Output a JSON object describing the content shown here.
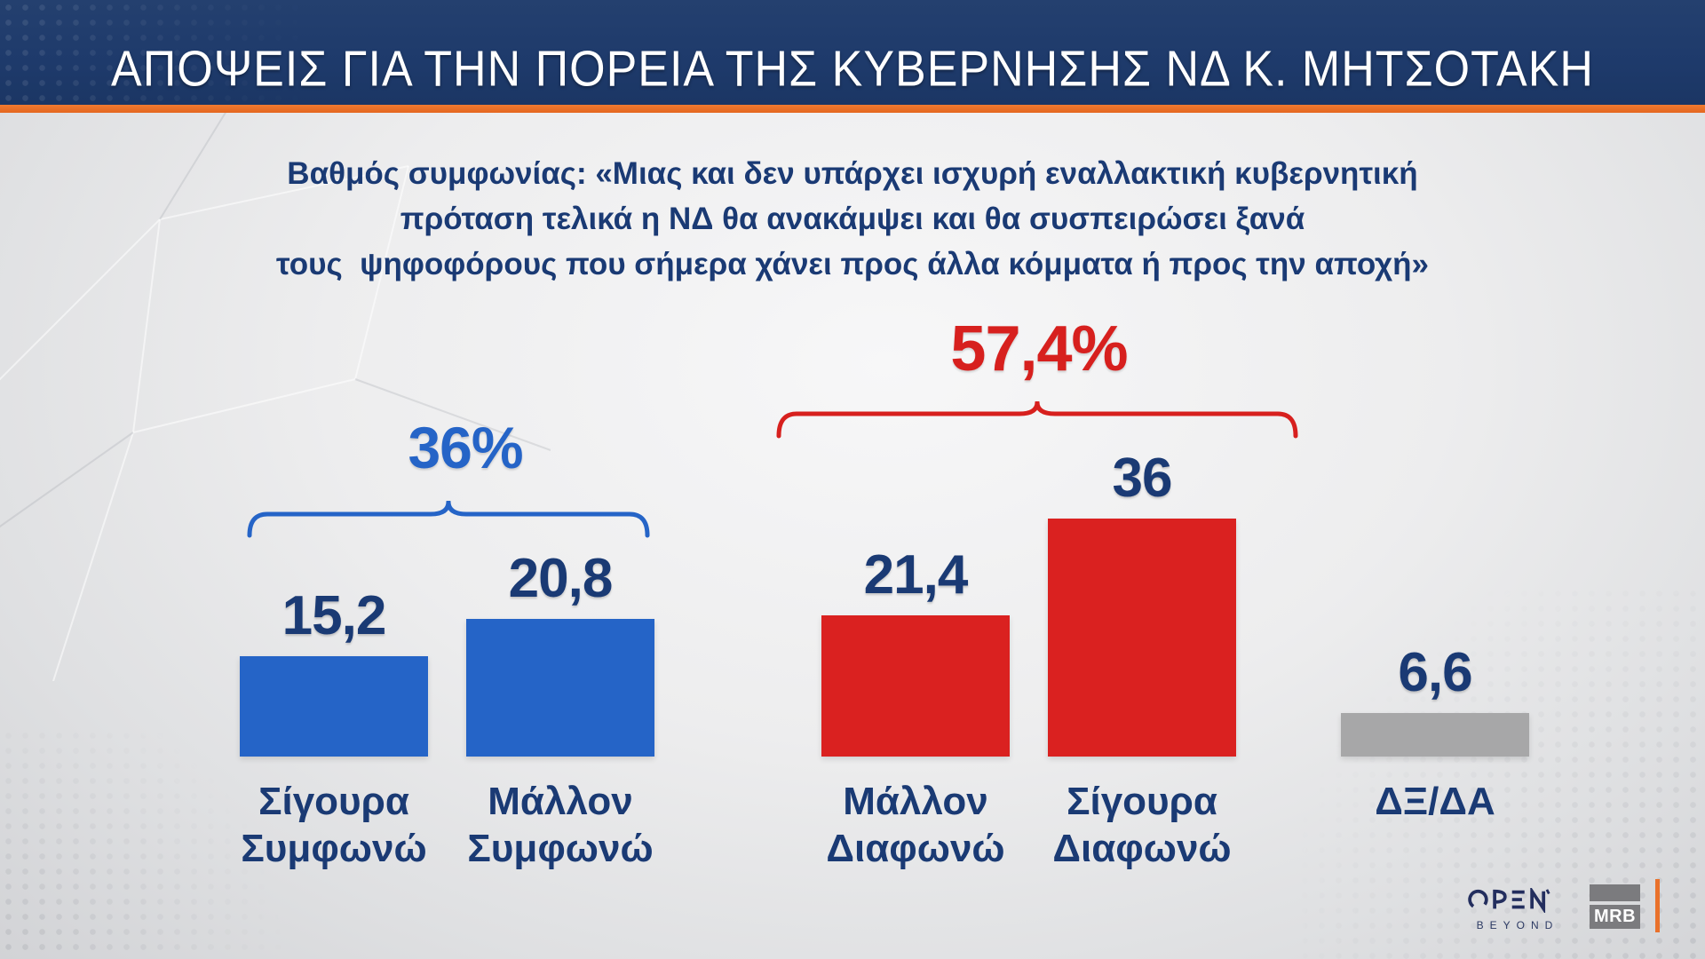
{
  "header": {
    "title": "ΑΠΟΨΕΙΣ ΓΙΑ ΤΗΝ ΠΟΡΕΙΑ ΤΗΣ ΚΥΒΕΡΝΗΣΗΣ ΝΔ Κ. ΜΗΤΣΟΤΑΚΗ"
  },
  "subtitle": {
    "line1": "Βαθμός συμφωνίας: «Μιας και δεν υπάρχει ισχυρή εναλλακτική κυβερνητική",
    "line2": "πρόταση τελικά η ΝΔ θα ανακάμψει και θα συσπειρώσει ξανά",
    "line3": "τους  ψηφοφόρους που σήμερα χάνει προς άλλα κόμματα ή προς την αποχή»"
  },
  "chart_data": {
    "type": "bar",
    "title": "ΑΠΟΨΕΙΣ ΓΙΑ ΤΗΝ ΠΟΡΕΙΑ ΤΗΣ ΚΥΒΕΡΝΗΣΗΣ ΝΔ Κ. ΜΗΤΣΟΤΑΚΗ",
    "categories": [
      "Σίγουρα Συμφωνώ",
      "Μάλλον Συμφωνώ",
      "Μάλλον Διαφωνώ",
      "Σίγουρα Διαφωνώ",
      "ΔΞ/ΔΑ"
    ],
    "categories_lines": [
      [
        "Σίγουρα",
        "Συμφωνώ"
      ],
      [
        "Μάλλον",
        "Συμφωνώ"
      ],
      [
        "Μάλλον",
        "Διαφωνώ"
      ],
      [
        "Σίγουρα",
        "Διαφωνώ"
      ],
      [
        "ΔΞ/ΔΑ"
      ]
    ],
    "values": [
      15.2,
      20.8,
      21.4,
      36,
      6.6
    ],
    "value_labels": [
      "15,2",
      "20,8",
      "21,4",
      "36",
      "6,6"
    ],
    "bar_colors": [
      "#2564c7",
      "#2564c7",
      "#da2120",
      "#da2120",
      "#a7a7a8"
    ],
    "groups": [
      {
        "label": "36%",
        "bars": [
          0,
          1
        ],
        "total": 36,
        "color": "#2564c7"
      },
      {
        "label": "57,4%",
        "bars": [
          2,
          3
        ],
        "total": 57.4,
        "color": "#d7201e"
      }
    ],
    "ylim": [
      0,
      40
    ],
    "grid": false,
    "legend_position": "none"
  },
  "footer": {
    "open_label": "OPEN",
    "open_sub": "BEYOND",
    "mrb_label": "MRB"
  },
  "colors": {
    "header_bg": "#1e3a6b",
    "accent_orange": "#e9712b",
    "navy_text": "#1a3a74",
    "blue": "#2564c7",
    "red": "#da2120",
    "gray": "#a7a7a8"
  }
}
